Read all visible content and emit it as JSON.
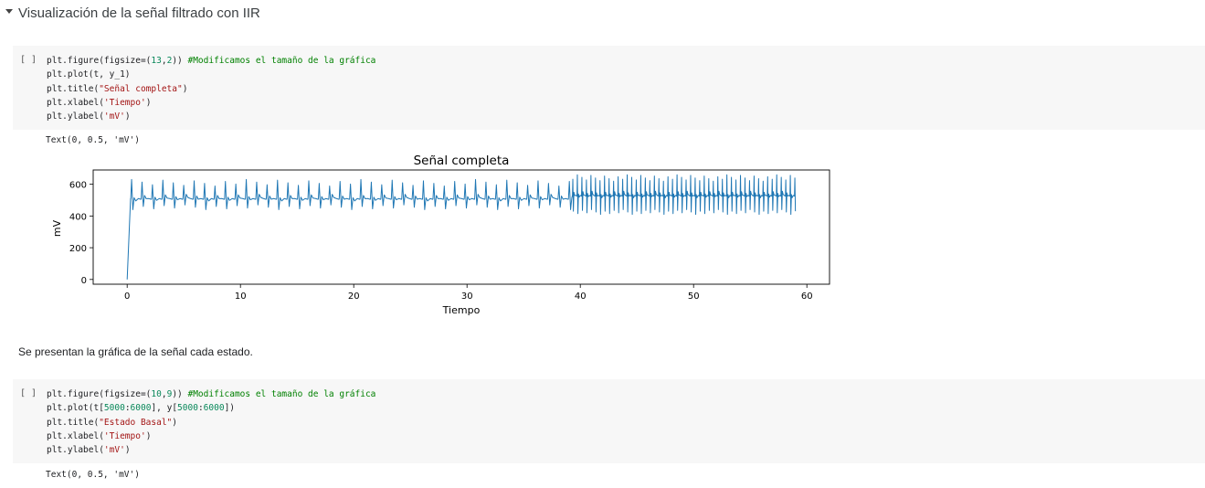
{
  "section": {
    "title": "Visualización de la señal filtrado con IIR"
  },
  "cell1": {
    "run_label": "[ ]",
    "lines": [
      [
        {
          "t": "plt.figure(figsize=("
        },
        {
          "t": "13",
          "c": "num"
        },
        {
          "t": ","
        },
        {
          "t": "2",
          "c": "num"
        },
        {
          "t": ")) "
        },
        {
          "t": "#Modificamos el tamaño de la gráfica",
          "c": "cm"
        }
      ],
      [
        {
          "t": "plt.plot(t, y_1)"
        }
      ],
      [
        {
          "t": "plt.title("
        },
        {
          "t": "\"Señal completa\"",
          "c": "str"
        },
        {
          "t": ")"
        }
      ],
      [
        {
          "t": "plt.xlabel("
        },
        {
          "t": "'Tiempo'",
          "c": "str"
        },
        {
          "t": ")"
        }
      ],
      [
        {
          "t": "plt.ylabel("
        },
        {
          "t": "'mV'",
          "c": "str"
        },
        {
          "t": ")"
        }
      ]
    ],
    "output": "Text(0, 0.5, 'mV')"
  },
  "chart_data": {
    "type": "line",
    "title": "Señal completa",
    "xlabel": "Tiempo",
    "ylabel": "mV",
    "xlim": [
      -3,
      62
    ],
    "ylim": [
      -30,
      690
    ],
    "xticks": [
      0,
      10,
      20,
      30,
      40,
      50,
      60
    ],
    "yticks": [
      0,
      200,
      400,
      600
    ],
    "color": "#1f77b4",
    "grid": false,
    "segments": [
      {
        "x_start": 0.3,
        "x_end": 39.3,
        "beat_period": 0.92,
        "baseline": 510,
        "peak_max": 630,
        "trough_min": 440
      },
      {
        "x_start": 39.3,
        "x_end": 59.0,
        "beat_period": 0.4,
        "baseline": 530,
        "peak_max": 660,
        "trough_min": 410
      }
    ],
    "start_point": {
      "x": 0,
      "y": 0
    }
  },
  "markdown": {
    "text": "Se presentan la gráfica de la señal cada estado."
  },
  "cell2": {
    "run_label": "[ ]",
    "lines": [
      [
        {
          "t": "plt.figure(figsize=("
        },
        {
          "t": "10",
          "c": "num"
        },
        {
          "t": ","
        },
        {
          "t": "9",
          "c": "num"
        },
        {
          "t": ")) "
        },
        {
          "t": "#Modificamos el tamaño de la gráfica",
          "c": "cm"
        }
      ],
      [
        {
          "t": "plt.plot(t["
        },
        {
          "t": "5000",
          "c": "num"
        },
        {
          "t": ":"
        },
        {
          "t": "6000",
          "c": "num"
        },
        {
          "t": "], y["
        },
        {
          "t": "5000",
          "c": "num"
        },
        {
          "t": ":"
        },
        {
          "t": "6000",
          "c": "num"
        },
        {
          "t": "])"
        }
      ],
      [
        {
          "t": "plt.title("
        },
        {
          "t": "\"Estado Basal\"",
          "c": "str"
        },
        {
          "t": ")"
        }
      ],
      [
        {
          "t": "plt.xlabel("
        },
        {
          "t": "'Tiempo'",
          "c": "str"
        },
        {
          "t": ")"
        }
      ],
      [
        {
          "t": "plt.ylabel("
        },
        {
          "t": "'mV'",
          "c": "str"
        },
        {
          "t": ")"
        }
      ]
    ],
    "output": "Text(0, 0.5, 'mV')"
  }
}
